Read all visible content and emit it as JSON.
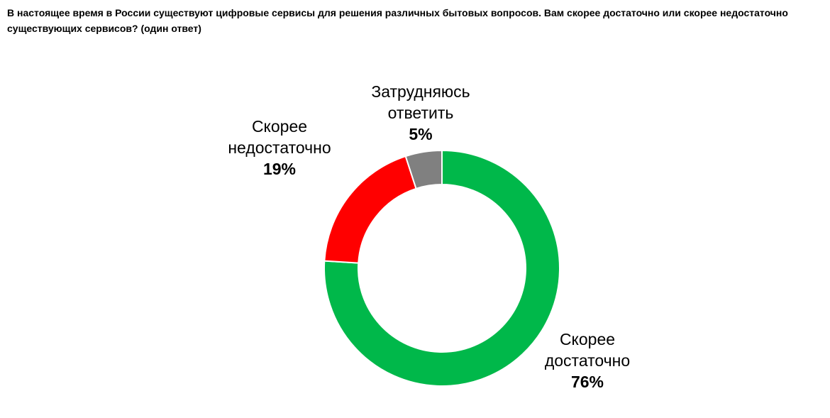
{
  "chart_data": {
    "type": "pie",
    "donut": true,
    "title": "В настоящее время в России существуют цифровые сервисы для решения различных бытовых вопросов. Вам скорее достаточно или скорее недостаточно существующих сервисов? (один ответ)",
    "categories": [
      "Скорее достаточно",
      "Скорее недостаточно",
      "Затрудняюсь ответить"
    ],
    "values": [
      76,
      19,
      5
    ],
    "value_labels": [
      "76%",
      "19%",
      "5%"
    ],
    "colors": [
      "#00b84a",
      "#ff0000",
      "#808080"
    ]
  }
}
